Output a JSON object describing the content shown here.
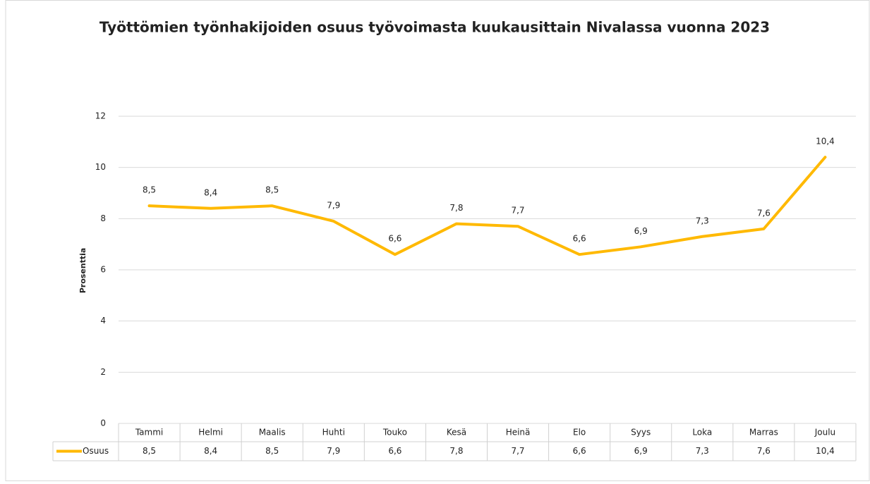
{
  "chart_data": {
    "type": "line",
    "title": "Työttömien työnhakijoiden osuus työvoimasta kuukausittain Nivalassa vuonna 2023",
    "y_label": "Prosenttia",
    "categories": [
      "Tammi",
      "Helmi",
      "Maalis",
      "Huhti",
      "Touko",
      "Kesä",
      "Heinä",
      "Elo",
      "Syys",
      "Loka",
      "Marras",
      "Joulu"
    ],
    "series": [
      {
        "name": "Osuus",
        "color": "#FFB900",
        "values": [
          8.5,
          8.4,
          8.5,
          7.9,
          6.6,
          7.8,
          7.7,
          6.6,
          6.9,
          7.3,
          7.6,
          10.4
        ],
        "value_labels": [
          "8,5",
          "8,4",
          "8,5",
          "7,9",
          "6,6",
          "7,8",
          "7,7",
          "6,6",
          "6,9",
          "7,3",
          "7,6",
          "10,4"
        ]
      }
    ],
    "ylim": [
      0,
      12
    ],
    "yticks": [
      0,
      2,
      4,
      6,
      8,
      10,
      12
    ],
    "grid": true,
    "data_table": true
  }
}
